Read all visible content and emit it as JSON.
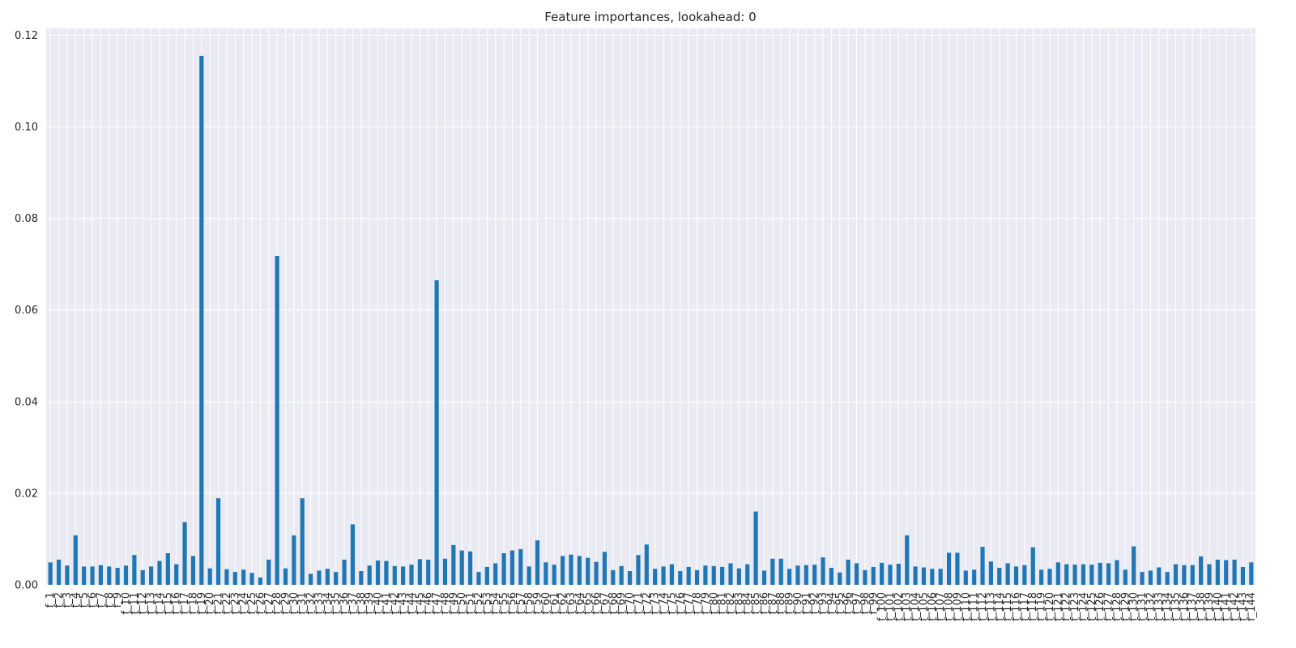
{
  "chart_data": {
    "type": "bar",
    "title": "Feature importances, lookahead: 0",
    "xlabel": "",
    "ylabel": "",
    "ylim": [
      0,
      0.1215
    ],
    "grid": true,
    "y_ticks": [
      0.0,
      0.02,
      0.04,
      0.06,
      0.08,
      0.1,
      0.12
    ],
    "y_tick_labels": [
      "0.00",
      "0.02",
      "0.04",
      "0.06",
      "0.08",
      "0.10",
      "0.12"
    ],
    "colors": {
      "bar": "#1f77b4",
      "background": "#eaeaf2",
      "grid": "#ffffff",
      "text": "#262626"
    },
    "categories": [
      "f_1",
      "f_2",
      "f_3",
      "f_4",
      "f_5",
      "f_6",
      "f_7",
      "f_8",
      "f_9",
      "f_10",
      "f_11",
      "f_12",
      "f_13",
      "f_14",
      "f_15",
      "f_16",
      "f_17",
      "f_18",
      "f_19",
      "f_20",
      "f_21",
      "f_22",
      "f_23",
      "f_24",
      "f_25",
      "f_26",
      "f_27",
      "f_28",
      "f_29",
      "f_30",
      "f_31",
      "f_32",
      "f_33",
      "f_34",
      "f_35",
      "f_36",
      "f_37",
      "f_38",
      "f_39",
      "f_40",
      "f_41",
      "f_42",
      "f_43",
      "f_44",
      "f_45",
      "f_46",
      "f_47",
      "f_48",
      "f_49",
      "f_50",
      "f_51",
      "f_52",
      "f_53",
      "f_54",
      "f_55",
      "f_56",
      "f_57",
      "f_58",
      "f_59",
      "f_60",
      "f_61",
      "f_62",
      "f_63",
      "f_64",
      "f_65",
      "f_66",
      "f_67",
      "f_68",
      "f_69",
      "f_70",
      "f_71",
      "f_72",
      "f_73",
      "f_74",
      "f_75",
      "f_76",
      "f_77",
      "f_78",
      "f_79",
      "f_80",
      "f_81",
      "f_82",
      "f_83",
      "f_84",
      "f_85",
      "f_86",
      "f_87",
      "f_88",
      "f_89",
      "f_90",
      "f_91",
      "f_92",
      "f_93",
      "f_94",
      "f_95",
      "f_96",
      "f_97",
      "f_98",
      "f_99",
      "f_100",
      "f_101",
      "f_102",
      "f_103",
      "f_104",
      "f_105",
      "f_106",
      "f_107",
      "f_108",
      "f_109",
      "f_110",
      "f_111",
      "f_112",
      "f_113",
      "f_114",
      "f_115",
      "f_116",
      "f_117",
      "f_118",
      "f_119",
      "f_120",
      "f_121",
      "f_122",
      "f_123",
      "f_124",
      "f_125",
      "f_126",
      "f_127",
      "f_128",
      "f_129",
      "f_130",
      "f_131",
      "f_132",
      "f_133",
      "f_134",
      "f_135",
      "f_136",
      "f_137",
      "f_138",
      "f_139",
      "f_140",
      "f_141",
      "f_142",
      "f_143",
      "f_144"
    ],
    "values": [
      0.0049,
      0.0055,
      0.0042,
      0.0108,
      0.004,
      0.004,
      0.0043,
      0.004,
      0.0037,
      0.0042,
      0.0065,
      0.0032,
      0.004,
      0.0052,
      0.0069,
      0.0045,
      0.0137,
      0.0063,
      0.1155,
      0.0036,
      0.0189,
      0.0034,
      0.0028,
      0.0033,
      0.0026,
      0.0016,
      0.0055,
      0.0718,
      0.0036,
      0.0108,
      0.0189,
      0.0024,
      0.0031,
      0.0035,
      0.0028,
      0.0055,
      0.0132,
      0.003,
      0.0042,
      0.0053,
      0.0052,
      0.0041,
      0.004,
      0.0044,
      0.0056,
      0.0055,
      0.0665,
      0.0057,
      0.0087,
      0.0075,
      0.0073,
      0.0028,
      0.0039,
      0.0047,
      0.0069,
      0.0075,
      0.0078,
      0.004,
      0.0097,
      0.0049,
      0.0044,
      0.0063,
      0.0066,
      0.0063,
      0.0059,
      0.005,
      0.0072,
      0.0032,
      0.0041,
      0.003,
      0.0065,
      0.0088,
      0.0035,
      0.004,
      0.0045,
      0.003,
      0.0039,
      0.0032,
      0.0042,
      0.0041,
      0.0039,
      0.0047,
      0.0036,
      0.0045,
      0.016,
      0.0031,
      0.0057,
      0.0057,
      0.0035,
      0.0042,
      0.0043,
      0.0044,
      0.006,
      0.0037,
      0.0027,
      0.0055,
      0.0047,
      0.0032,
      0.0039,
      0.0048,
      0.0044,
      0.0046,
      0.0108,
      0.004,
      0.0038,
      0.0035,
      0.0035,
      0.007,
      0.007,
      0.0031,
      0.0033,
      0.0083,
      0.0051,
      0.0037,
      0.0047,
      0.004,
      0.0043,
      0.0082,
      0.0033,
      0.0035,
      0.0049,
      0.0045,
      0.0044,
      0.0045,
      0.0044,
      0.0048,
      0.0047,
      0.0054,
      0.0033,
      0.0084,
      0.0028,
      0.0031,
      0.0038,
      0.0028,
      0.0045,
      0.0043,
      0.0043,
      0.0062,
      0.0045,
      0.0055,
      0.0054,
      0.0055,
      0.0039,
      0.0049
    ]
  }
}
